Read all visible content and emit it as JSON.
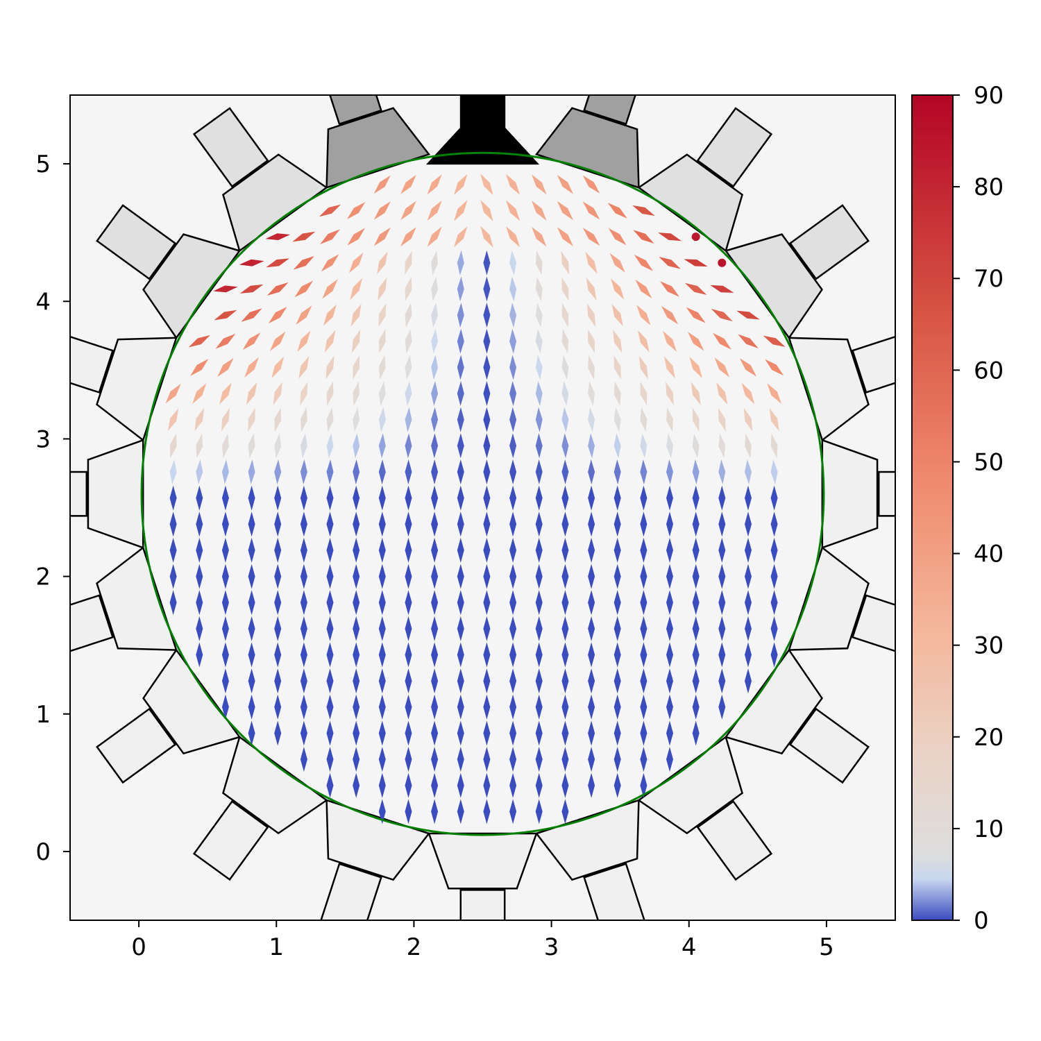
{
  "chart_data": {
    "type": "scatter",
    "title": "",
    "xlabel": "",
    "ylabel": "",
    "xlim": [
      -0.5,
      5.5
    ],
    "ylim": [
      -0.5,
      5.5
    ],
    "x_ticks": [
      "0",
      "1",
      "2",
      "3",
      "4",
      "5"
    ],
    "y_ticks": [
      "0",
      "1",
      "2",
      "3",
      "4",
      "5"
    ],
    "domain_circle": {
      "center": [
        2.5,
        2.6
      ],
      "radius": 2.48,
      "color": "#008000"
    },
    "grid": false,
    "colorbar": {
      "colormap": "coolwarm",
      "range": [
        0,
        90
      ],
      "ticks": [
        "0",
        "10",
        "20",
        "30",
        "40",
        "50",
        "60",
        "70",
        "80",
        "90"
      ]
    },
    "field": {
      "description_of_encoding": "",
      "grid_spacing": 0.19,
      "value_by_region": [
        {
          "region": "central column and lower half",
          "tilt_deg": [
            0,
            10
          ]
        },
        {
          "region": "upper shoulders",
          "tilt_deg": [
            10,
            60
          ]
        },
        {
          "region": "upper-left and upper-right corners (points)",
          "tilt_deg": [
            90,
            90
          ]
        }
      ]
    },
    "colors": {
      "background": "#f5f5f5",
      "electrode_fill_light": "#f0f0f0",
      "electrode_fill_mid": "#e0e0e0",
      "electrode_fill_dark": "#a0a0a0",
      "top_electrode": "#000000",
      "outline": "#000000"
    }
  }
}
